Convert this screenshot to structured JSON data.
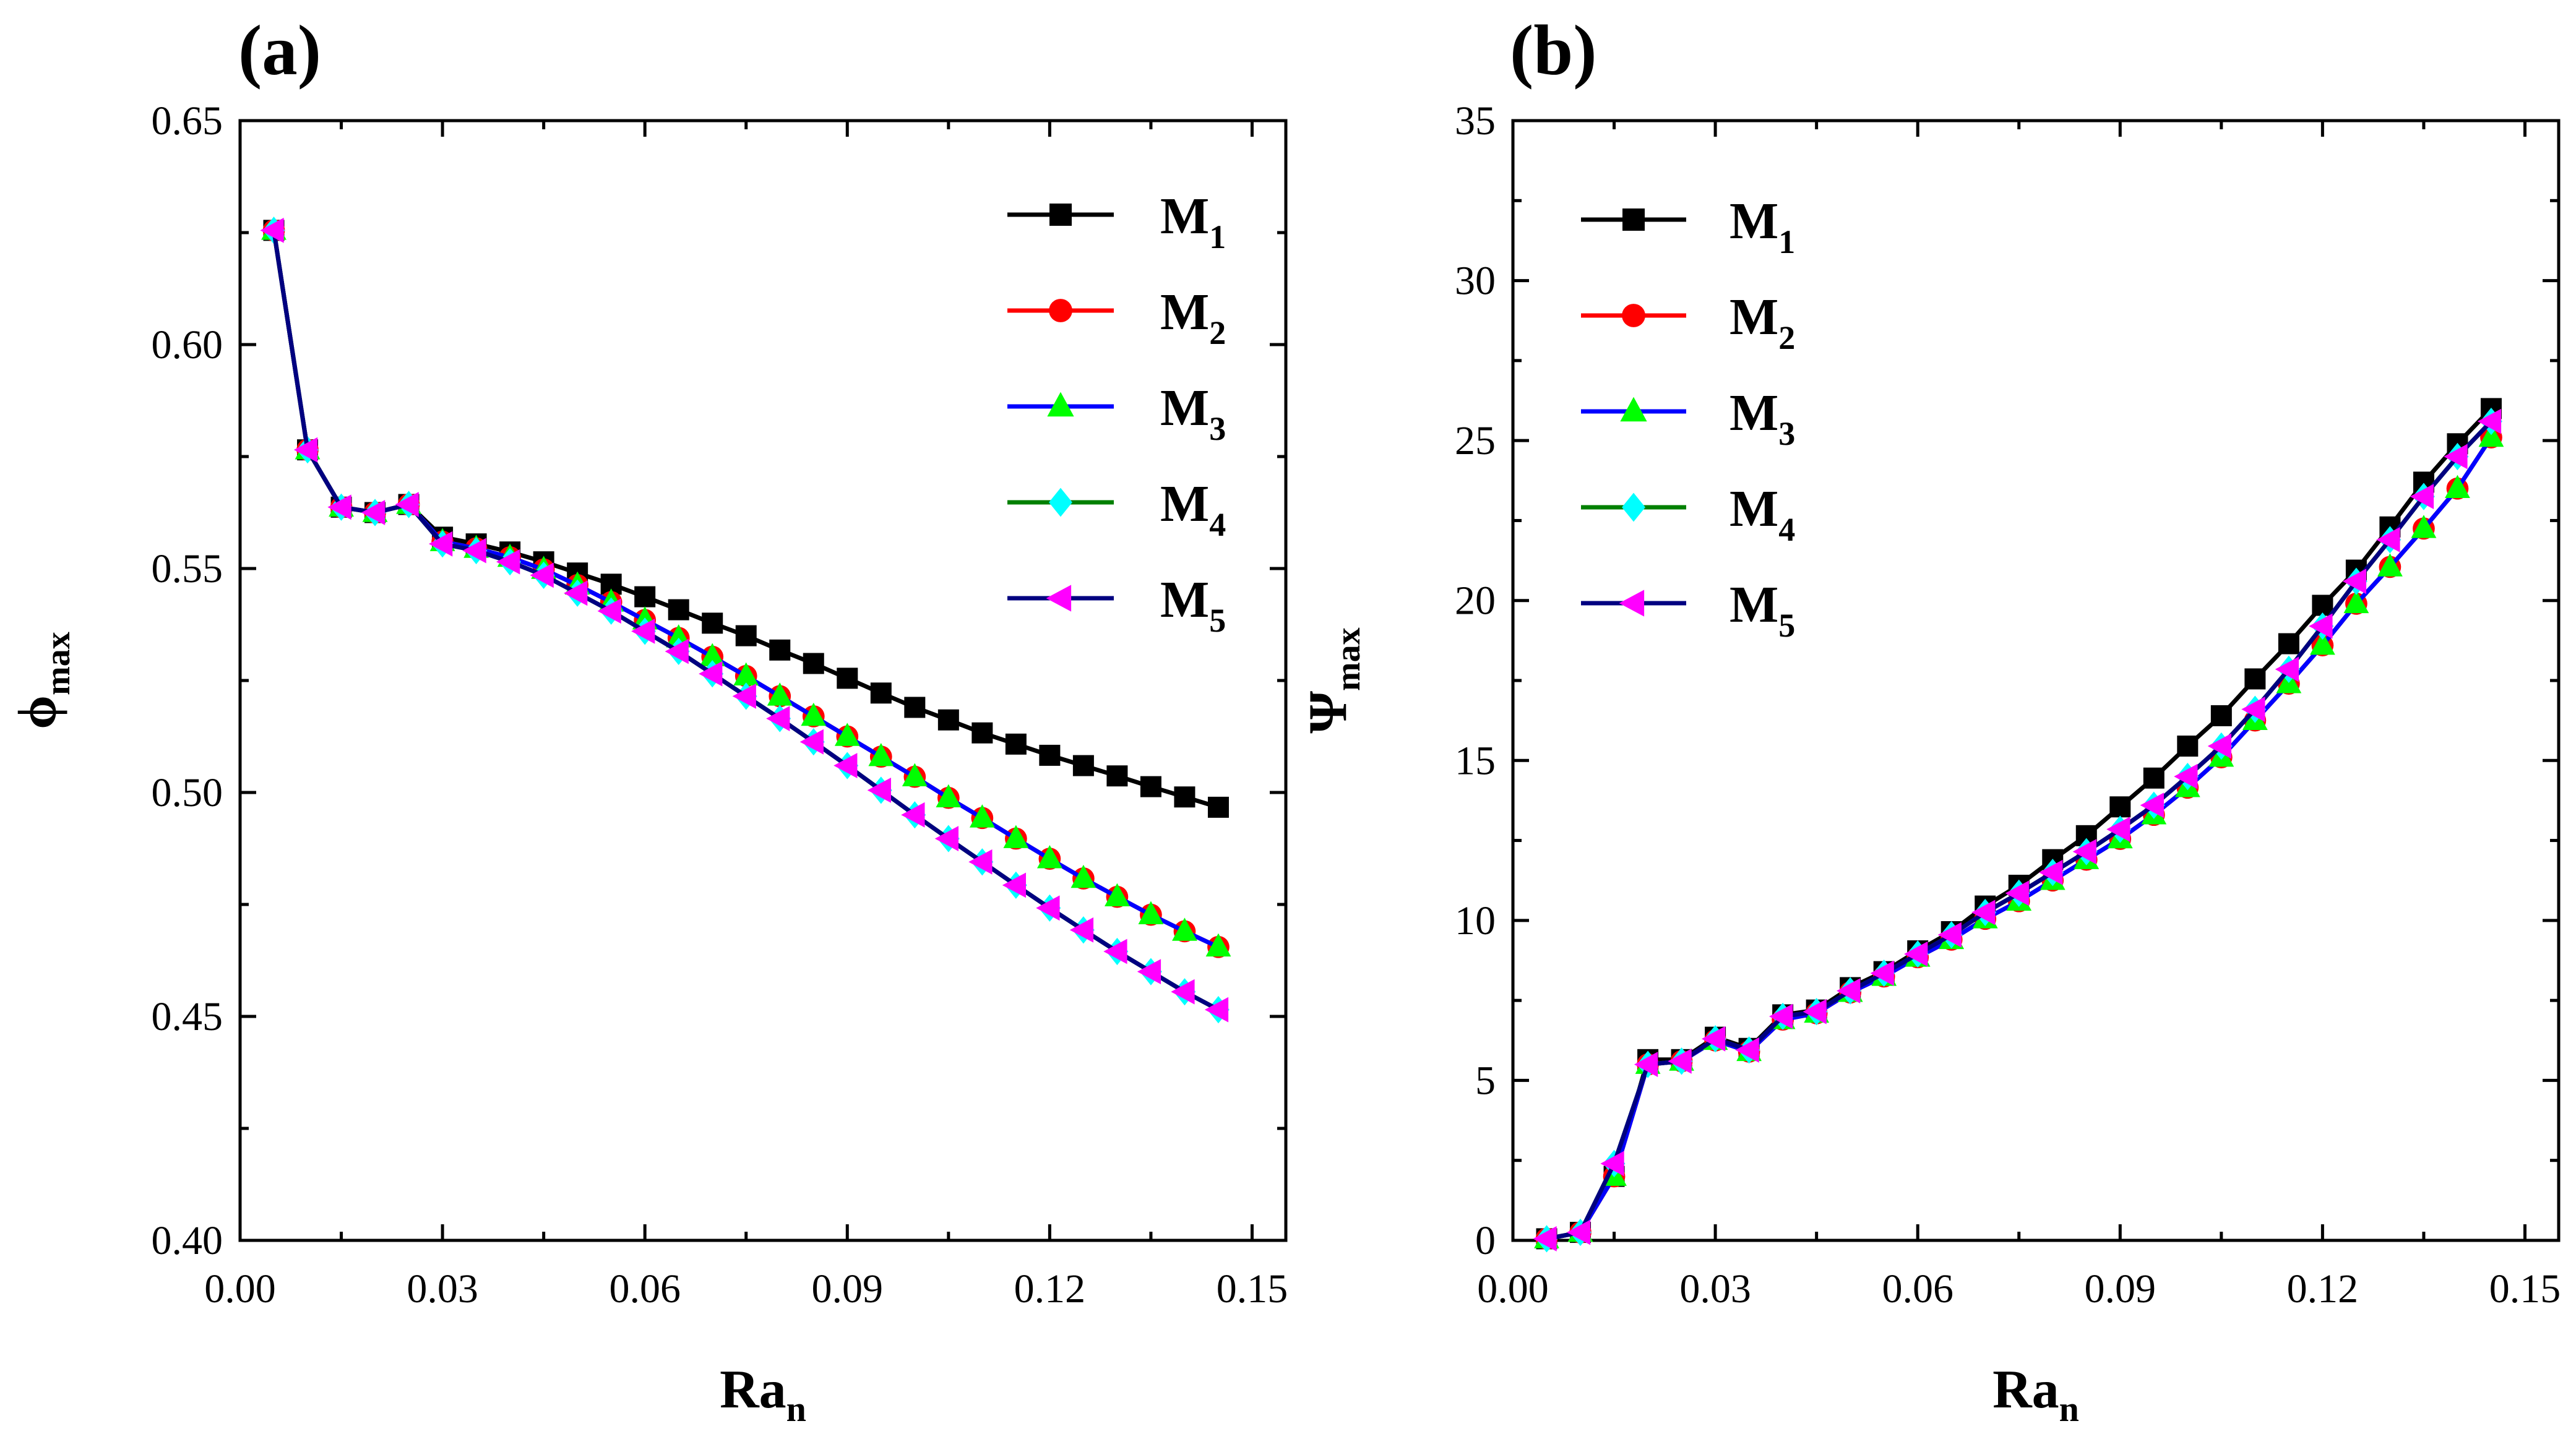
{
  "chart_data": [
    {
      "type": "line",
      "panel_label": "(a)",
      "xlabel": "Ra",
      "xlabel_sub": "n",
      "ylabel": "ϕ",
      "ylabel_sub": "max",
      "xlim": [
        0.0,
        0.155
      ],
      "ylim": [
        0.4,
        0.65
      ],
      "xticks": [
        "0.00",
        "0.03",
        "0.06",
        "0.09",
        "0.12",
        "0.15"
      ],
      "yticks": [
        "0.40",
        "0.45",
        "0.50",
        "0.55",
        "0.60",
        "0.65"
      ],
      "legend_position": "top-right",
      "x": [
        0.005,
        0.01,
        0.015,
        0.02,
        0.025,
        0.03,
        0.035,
        0.04,
        0.045,
        0.05,
        0.055,
        0.06,
        0.065,
        0.07,
        0.075,
        0.08,
        0.085,
        0.09,
        0.095,
        0.1,
        0.105,
        0.11,
        0.115,
        0.12,
        0.125,
        0.13,
        0.135,
        0.14,
        0.145
      ],
      "series": [
        {
          "name": "M",
          "sub": "1",
          "color": "#000000",
          "marker": "square",
          "values": [
            0.6255,
            0.5765,
            0.5637,
            0.5625,
            0.5643,
            0.557,
            0.5555,
            0.5537,
            0.5515,
            0.549,
            0.5465,
            0.5437,
            0.5408,
            0.5378,
            0.535,
            0.5318,
            0.5288,
            0.5255,
            0.5222,
            0.519,
            0.5162,
            0.5133,
            0.5108,
            0.5083,
            0.506,
            0.5037,
            0.5013,
            0.499,
            0.4967
          ]
        },
        {
          "name": "M",
          "sub": "2",
          "color": "#ff0000",
          "marker": "circle",
          "values": [
            0.6255,
            0.5765,
            0.5637,
            0.5625,
            0.5643,
            0.556,
            0.5545,
            0.5525,
            0.5498,
            0.5463,
            0.5425,
            0.5385,
            0.5345,
            0.5303,
            0.526,
            0.5215,
            0.517,
            0.5125,
            0.508,
            0.5035,
            0.4988,
            0.4943,
            0.4897,
            0.4852,
            0.4808,
            0.4767,
            0.4727,
            0.469,
            0.4655
          ]
        },
        {
          "name": "M",
          "sub": "3",
          "color": "#0000ff",
          "marker": "triangle",
          "values": [
            0.6255,
            0.5765,
            0.5637,
            0.5625,
            0.5643,
            0.556,
            0.5545,
            0.5525,
            0.5498,
            0.5463,
            0.5425,
            0.5385,
            0.5345,
            0.5303,
            0.526,
            0.5215,
            0.517,
            0.5125,
            0.508,
            0.5035,
            0.4988,
            0.4943,
            0.4897,
            0.4852,
            0.4808,
            0.4767,
            0.4727,
            0.469,
            0.4655
          ]
        },
        {
          "name": "M",
          "sub": "4",
          "color": "#008000",
          "marker": "diamond",
          "values": [
            0.6255,
            0.5765,
            0.5637,
            0.5625,
            0.5643,
            0.5555,
            0.554,
            0.5515,
            0.5485,
            0.5445,
            0.5405,
            0.536,
            0.5315,
            0.5265,
            0.5215,
            0.5165,
            0.5113,
            0.506,
            0.5005,
            0.495,
            0.4897,
            0.4845,
            0.4793,
            0.4742,
            0.4693,
            0.4645,
            0.46,
            0.4555,
            0.4515
          ]
        },
        {
          "name": "M",
          "sub": "5",
          "color": "#000080",
          "marker": "triangle-left",
          "values": [
            0.6255,
            0.5765,
            0.5637,
            0.5625,
            0.5643,
            0.5555,
            0.554,
            0.5515,
            0.5485,
            0.5445,
            0.5405,
            0.536,
            0.5315,
            0.5265,
            0.5215,
            0.5165,
            0.5113,
            0.506,
            0.5005,
            0.495,
            0.4897,
            0.4845,
            0.4793,
            0.4742,
            0.4693,
            0.4645,
            0.46,
            0.4555,
            0.4515
          ]
        }
      ]
    },
    {
      "type": "line",
      "panel_label": "(b)",
      "xlabel": "Ra",
      "xlabel_sub": "n",
      "ylabel": "Ψ",
      "ylabel_sub": "max",
      "xlim": [
        0.0,
        0.155
      ],
      "ylim": [
        0,
        35
      ],
      "xticks": [
        "0.00",
        "0.03",
        "0.06",
        "0.09",
        "0.12",
        "0.15"
      ],
      "yticks": [
        "0",
        "5",
        "10",
        "15",
        "20",
        "25",
        "30",
        "35"
      ],
      "legend_position": "top-left",
      "x": [
        0.005,
        0.01,
        0.015,
        0.02,
        0.025,
        0.03,
        0.035,
        0.04,
        0.045,
        0.05,
        0.055,
        0.06,
        0.065,
        0.07,
        0.075,
        0.08,
        0.085,
        0.09,
        0.095,
        0.1,
        0.105,
        0.11,
        0.115,
        0.12,
        0.125,
        0.13,
        0.135,
        0.14,
        0.145
      ],
      "series": [
        {
          "name": "M",
          "sub": "1",
          "color": "#000000",
          "marker": "square",
          "values": [
            0.05,
            0.25,
            2.0,
            5.65,
            5.65,
            6.35,
            6.0,
            7.05,
            7.2,
            7.9,
            8.4,
            9.05,
            9.65,
            10.45,
            11.1,
            11.9,
            12.65,
            13.55,
            14.45,
            15.45,
            16.4,
            17.55,
            18.65,
            19.85,
            20.95,
            22.3,
            23.7,
            24.9,
            26.0
          ]
        },
        {
          "name": "M",
          "sub": "2",
          "color": "#ff0000",
          "marker": "circle",
          "values": [
            0.05,
            0.25,
            2.0,
            5.5,
            5.6,
            6.25,
            5.9,
            6.9,
            7.1,
            7.75,
            8.25,
            8.85,
            9.4,
            10.05,
            10.6,
            11.25,
            11.9,
            12.55,
            13.3,
            14.15,
            15.1,
            16.25,
            17.4,
            18.6,
            19.9,
            21.05,
            22.25,
            23.5,
            25.1
          ]
        },
        {
          "name": "M",
          "sub": "3",
          "color": "#0000ff",
          "marker": "triangle",
          "values": [
            0.05,
            0.25,
            2.0,
            5.5,
            5.6,
            6.25,
            5.9,
            6.9,
            7.1,
            7.75,
            8.25,
            8.85,
            9.4,
            10.05,
            10.6,
            11.25,
            11.9,
            12.55,
            13.3,
            14.15,
            15.1,
            16.25,
            17.4,
            18.6,
            19.9,
            21.05,
            22.25,
            23.5,
            25.1
          ]
        },
        {
          "name": "M",
          "sub": "4",
          "color": "#008000",
          "marker": "diamond",
          "values": [
            0.05,
            0.25,
            2.4,
            5.5,
            5.6,
            6.3,
            5.95,
            7.0,
            7.15,
            7.8,
            8.35,
            8.95,
            9.55,
            10.25,
            10.85,
            11.5,
            12.15,
            12.85,
            13.6,
            14.5,
            15.45,
            16.6,
            17.85,
            19.2,
            20.6,
            21.9,
            23.25,
            24.5,
            25.6
          ]
        },
        {
          "name": "M",
          "sub": "5",
          "color": "#000080",
          "marker": "triangle-left",
          "values": [
            0.05,
            0.25,
            2.4,
            5.5,
            5.6,
            6.3,
            5.95,
            7.0,
            7.15,
            7.8,
            8.35,
            8.95,
            9.55,
            10.25,
            10.85,
            11.5,
            12.15,
            12.85,
            13.6,
            14.5,
            15.45,
            16.6,
            17.85,
            19.2,
            20.6,
            21.9,
            23.25,
            24.5,
            25.6
          ]
        }
      ]
    }
  ]
}
